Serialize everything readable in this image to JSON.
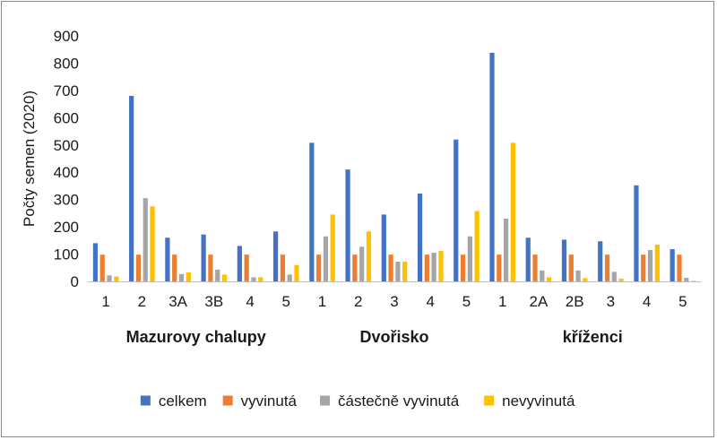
{
  "chart_data": {
    "type": "bar",
    "ylabel": "Počty semen (2020)",
    "ylim": [
      0,
      900
    ],
    "yticks": [
      0,
      100,
      200,
      300,
      400,
      500,
      600,
      700,
      800,
      900
    ],
    "grid": false,
    "legend_position": "bottom",
    "categories": [
      "1",
      "2",
      "3A",
      "3B",
      "4",
      "5",
      "1",
      "2",
      "3",
      "4",
      "5",
      "1",
      "2A",
      "2B",
      "3",
      "4",
      "5"
    ],
    "groups": [
      {
        "label": "Mazurovy chalupy",
        "count": 6
      },
      {
        "label": "Dvořisko",
        "count": 5
      },
      {
        "label": "kříženci",
        "count": 6
      }
    ],
    "series": [
      {
        "name": "celkem",
        "color": "#4472C4",
        "values": [
          140,
          680,
          160,
          172,
          130,
          183,
          508,
          410,
          245,
          322,
          520,
          838,
          160,
          153,
          147,
          352,
          118
        ]
      },
      {
        "name": "vyvinutá",
        "color": "#ED7D31",
        "values": [
          98,
          98,
          98,
          98,
          98,
          98,
          98,
          98,
          98,
          98,
          98,
          98,
          98,
          98,
          98,
          98,
          98
        ]
      },
      {
        "name": "částečně vyvinutá",
        "color": "#A5A5A5",
        "values": [
          22,
          305,
          27,
          43,
          15,
          25,
          165,
          127,
          72,
          105,
          165,
          230,
          40,
          40,
          35,
          115,
          13
        ]
      },
      {
        "name": "nevyvinutá",
        "color": "#FFC000",
        "values": [
          18,
          275,
          33,
          25,
          15,
          60,
          245,
          183,
          72,
          112,
          258,
          508,
          15,
          12,
          10,
          135,
          2
        ]
      }
    ]
  }
}
